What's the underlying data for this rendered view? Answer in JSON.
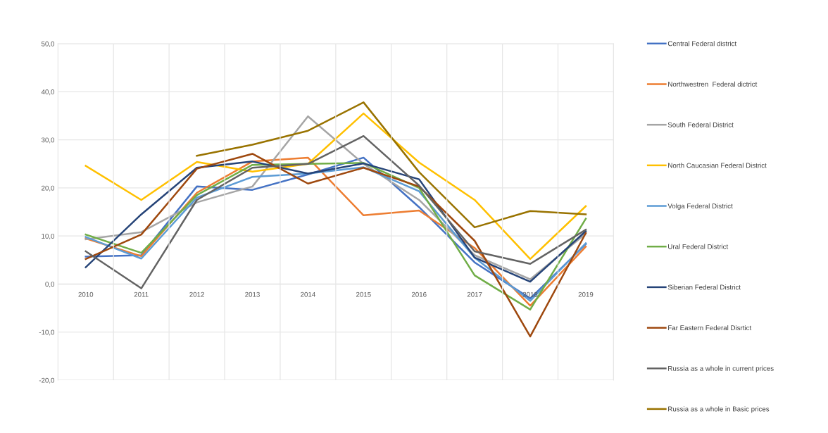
{
  "chart_data": {
    "type": "line",
    "categories": [
      "2010",
      "2011",
      "2012",
      "2013",
      "2014",
      "2015",
      "2016",
      "2017",
      "2018",
      "2019"
    ],
    "ylim": [
      -20,
      50
    ],
    "yticks": [
      {
        "value": -20,
        "label": "-20,0"
      },
      {
        "value": -10,
        "label": "-10,0"
      },
      {
        "value": 0,
        "label": "0,0"
      },
      {
        "value": 10,
        "label": "10,0"
      },
      {
        "value": 20,
        "label": "20,0"
      },
      {
        "value": 30,
        "label": "30,0"
      },
      {
        "value": 40,
        "label": "40,0"
      },
      {
        "value": 50,
        "label": "50,0"
      }
    ],
    "grid": true,
    "legend": "right",
    "marker": "none",
    "line_style": "solid",
    "series": [
      {
        "name": "Central Federal district",
        "color": "#4472c4",
        "values": [
          5.7,
          6.0,
          20.3,
          19.6,
          22.8,
          26.3,
          16.0,
          4.5,
          -3.0,
          8.3
        ]
      },
      {
        "name": "Northwestren  Federal dictrict",
        "color": "#ed7d31",
        "values": [
          9.5,
          5.8,
          19.0,
          25.5,
          26.3,
          14.3,
          15.3,
          7.5,
          -4.5,
          7.8
        ]
      },
      {
        "name": "South Federal District",
        "color": "#a5a5a5",
        "values": [
          9.3,
          10.8,
          17.0,
          20.3,
          34.9,
          25.0,
          17.5,
          6.0,
          1.0,
          10.5
        ]
      },
      {
        "name": "North Caucasian Federal District",
        "color": "#ffc000",
        "values": [
          24.6,
          17.5,
          25.4,
          23.4,
          25.0,
          35.5,
          25.3,
          17.5,
          5.2,
          16.2
        ]
      },
      {
        "name": "Volga Federal District",
        "color": "#5b9bd5",
        "values": [
          9.8,
          5.3,
          18.0,
          22.3,
          23.0,
          24.3,
          19.3,
          5.5,
          -3.5,
          8.5
        ]
      },
      {
        "name": "Ural Federal District",
        "color": "#70ad47",
        "values": [
          10.3,
          6.5,
          18.5,
          24.8,
          25.0,
          25.2,
          20.0,
          1.8,
          -5.3,
          13.6
        ]
      },
      {
        "name": "Siberian Federal District",
        "color": "#264478",
        "values": [
          3.5,
          14.5,
          24.2,
          25.5,
          23.0,
          25.1,
          21.8,
          5.5,
          0.5,
          11.0
        ]
      },
      {
        "name": "Far Eastern Federal Disrtict",
        "color": "#9e480e",
        "values": [
          5.2,
          10.3,
          24.0,
          27.1,
          20.9,
          24.2,
          20.3,
          9.0,
          -10.9,
          10.6
        ]
      },
      {
        "name": "Russia as a whole in current prices",
        "color": "#636363",
        "values": [
          6.8,
          -0.9,
          17.5,
          24.2,
          25.0,
          30.8,
          20.5,
          6.8,
          4.2,
          11.3
        ]
      },
      {
        "name": "Russia as a whole in Basic prices",
        "color": "#997300",
        "values": [
          null,
          null,
          26.7,
          29.0,
          31.9,
          37.8,
          23.3,
          11.8,
          15.2,
          14.5
        ]
      }
    ]
  }
}
